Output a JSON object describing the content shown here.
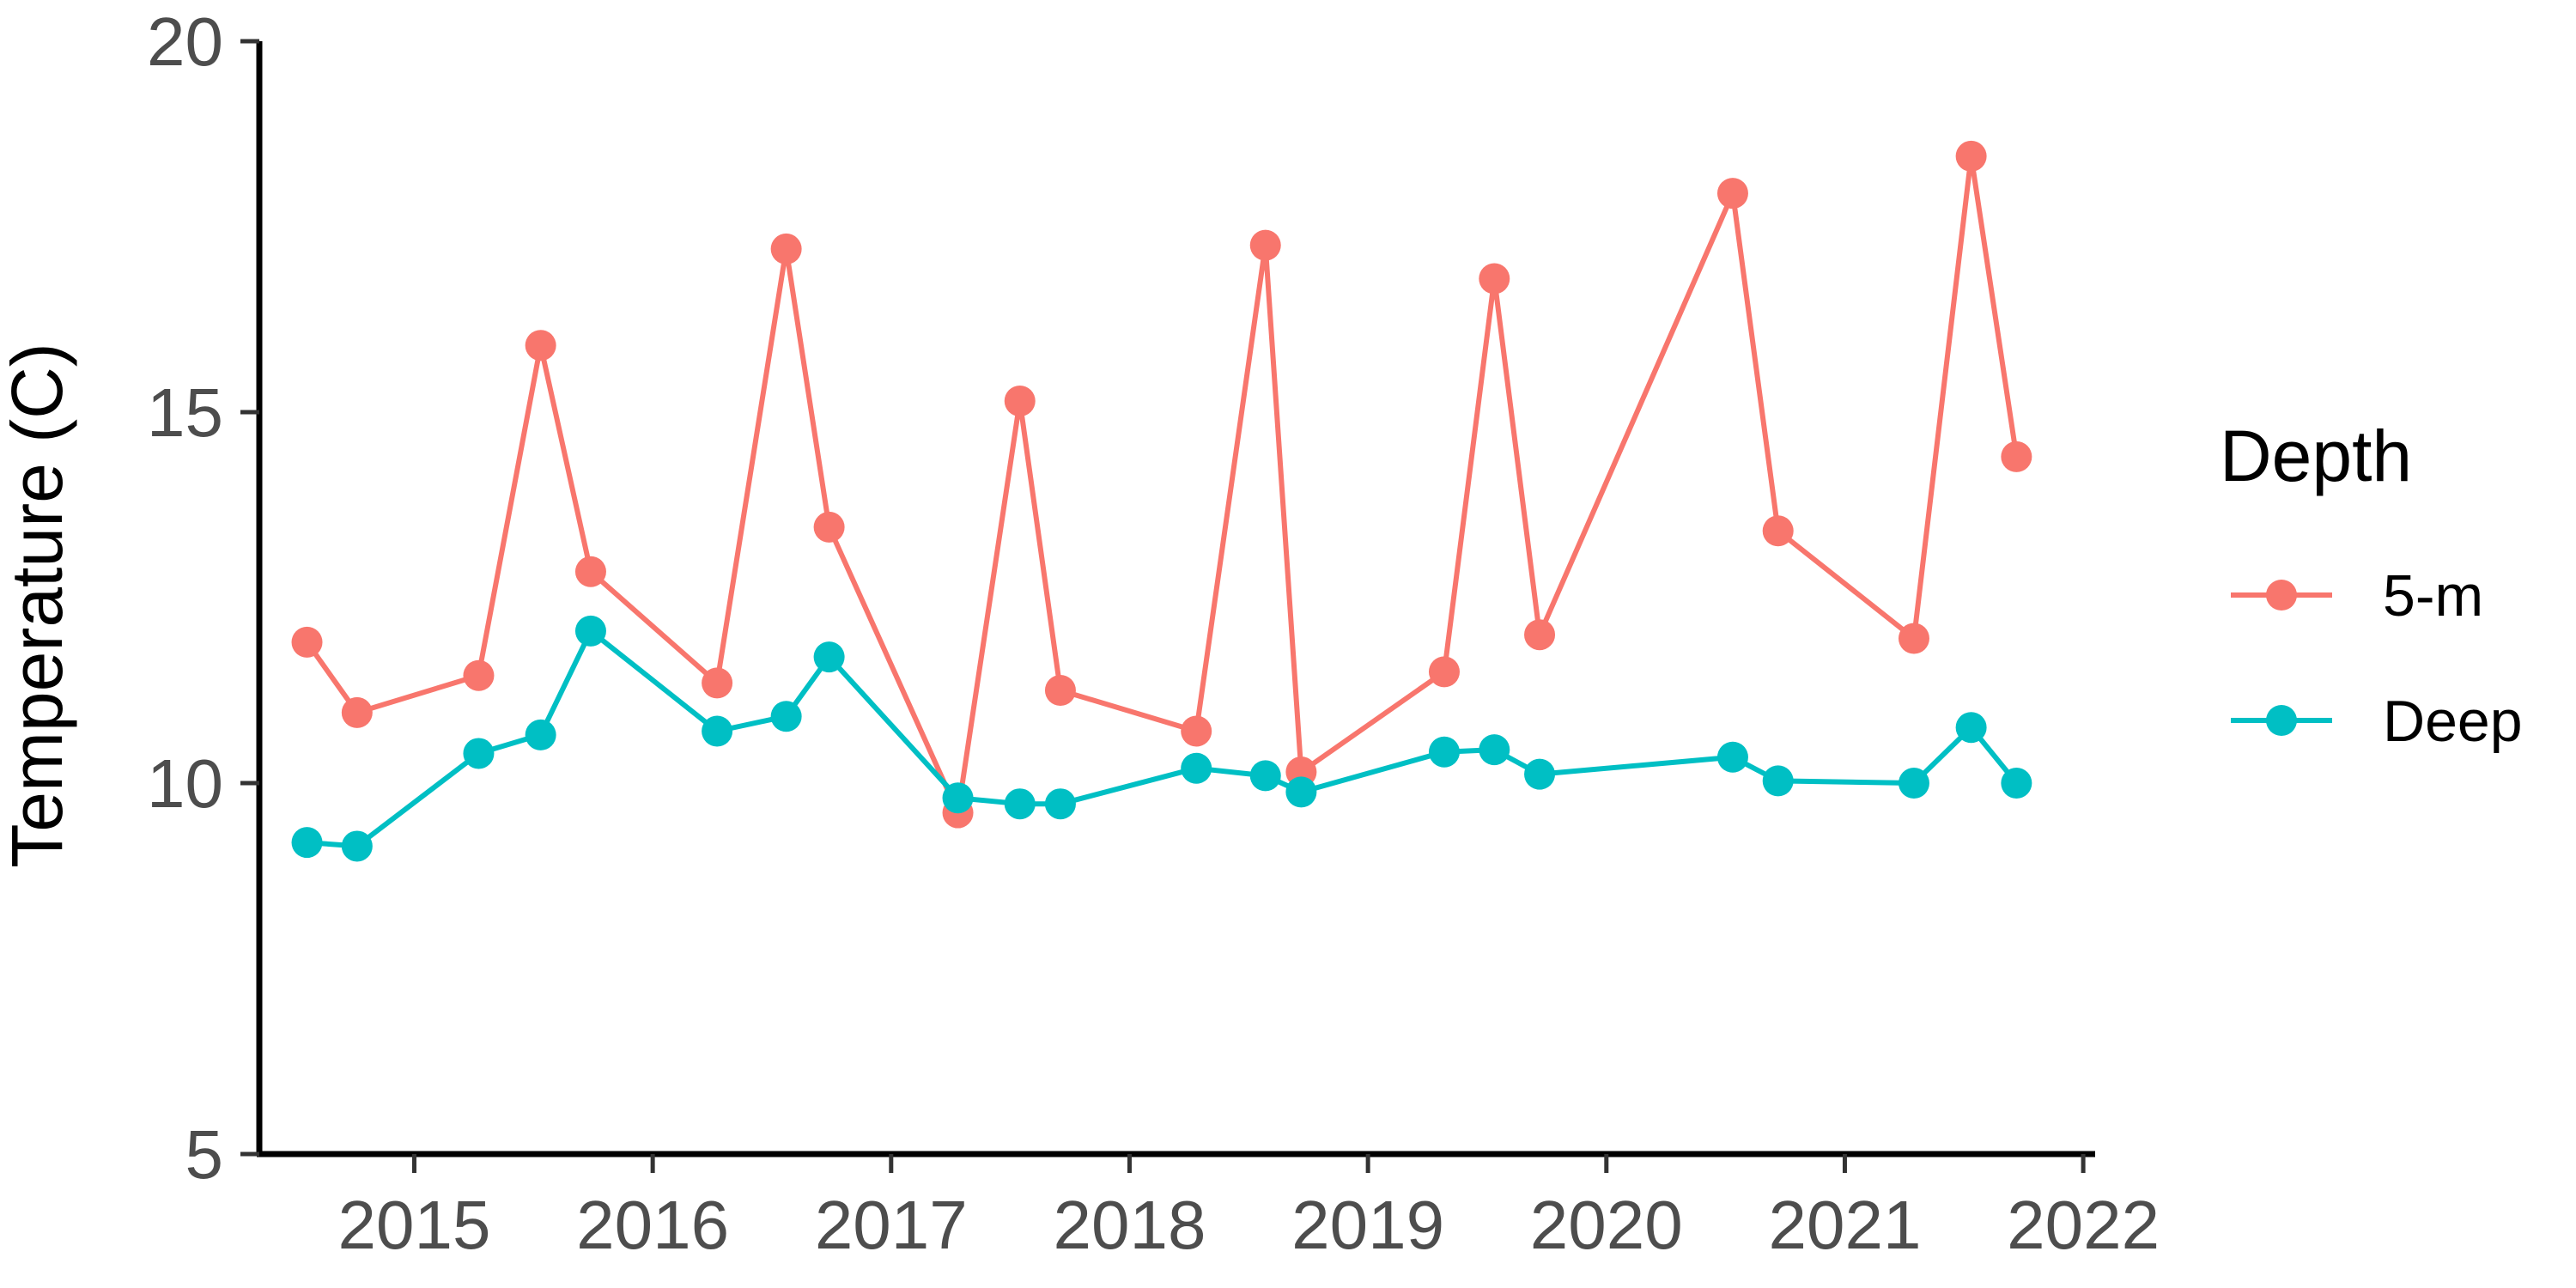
{
  "chart_data": {
    "type": "line",
    "xlabel": "",
    "ylabel": "Temperature (C)",
    "xlim": [
      2014.35,
      2022.05
    ],
    "ylim": [
      5,
      20
    ],
    "x_ticks": [
      2015,
      2016,
      2017,
      2018,
      2019,
      2020,
      2021,
      2022
    ],
    "x_tick_labels": [
      "2015",
      "2016",
      "2017",
      "2018",
      "2019",
      "2020",
      "2021",
      "2022"
    ],
    "y_ticks": [
      5,
      10,
      15,
      20
    ],
    "y_tick_labels": [
      "5",
      "10",
      "15",
      "20"
    ],
    "grid": false,
    "legend": {
      "title": "Depth",
      "position": "right"
    },
    "series": [
      {
        "name": "5-m",
        "color": "#F8766D",
        "points": [
          [
            2014.55,
            11.9
          ],
          [
            2014.76,
            10.95
          ],
          [
            2015.27,
            11.45
          ],
          [
            2015.53,
            15.9
          ],
          [
            2015.74,
            12.85
          ],
          [
            2016.27,
            11.35
          ],
          [
            2016.56,
            17.2
          ],
          [
            2016.74,
            13.45
          ],
          [
            2017.28,
            9.6
          ],
          [
            2017.54,
            15.15
          ],
          [
            2017.71,
            11.25
          ],
          [
            2018.28,
            10.7
          ],
          [
            2018.57,
            17.25
          ],
          [
            2018.72,
            10.15
          ],
          [
            2019.32,
            11.5
          ],
          [
            2019.53,
            16.8
          ],
          [
            2019.72,
            12.0
          ],
          [
            2020.53,
            17.95
          ],
          [
            2020.72,
            13.4
          ],
          [
            2021.29,
            11.95
          ],
          [
            2021.53,
            18.45
          ],
          [
            2021.72,
            14.4
          ]
        ]
      },
      {
        "name": "Deep",
        "color": "#00BFC4",
        "points": [
          [
            2014.55,
            9.2
          ],
          [
            2014.76,
            9.15
          ],
          [
            2015.27,
            10.4
          ],
          [
            2015.53,
            10.65
          ],
          [
            2015.74,
            12.05
          ],
          [
            2016.27,
            10.7
          ],
          [
            2016.56,
            10.9
          ],
          [
            2016.74,
            11.7
          ],
          [
            2017.28,
            9.8
          ],
          [
            2017.54,
            9.72
          ],
          [
            2017.71,
            9.72
          ],
          [
            2018.28,
            10.2
          ],
          [
            2018.57,
            10.1
          ],
          [
            2018.72,
            9.88
          ],
          [
            2019.32,
            10.42
          ],
          [
            2019.53,
            10.45
          ],
          [
            2019.72,
            10.12
          ],
          [
            2020.53,
            10.35
          ],
          [
            2020.72,
            10.03
          ],
          [
            2021.29,
            10.0
          ],
          [
            2021.53,
            10.75
          ],
          [
            2021.72,
            10.0
          ]
        ]
      }
    ]
  }
}
